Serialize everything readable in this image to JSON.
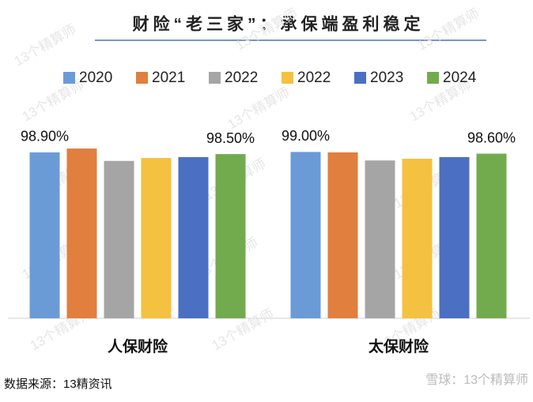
{
  "chart_data": {
    "type": "bar",
    "title": "财险“老三家”：承保端盈利稳定",
    "categories": [
      "人保财险",
      "太保财险"
    ],
    "series": [
      {
        "name": "2020",
        "color": "#6b9bd6",
        "values": [
          98.9,
          99.0
        ],
        "value_labels": [
          "98.90%",
          "99.00%"
        ]
      },
      {
        "name": "2021",
        "color": "#e07f3e",
        "values": [
          99.8,
          98.9
        ]
      },
      {
        "name": "2022",
        "color": "#a5a5a5",
        "values": [
          96.9,
          97.0
        ]
      },
      {
        "name": "2022",
        "color": "#f5c140",
        "values": [
          97.6,
          97.4
        ]
      },
      {
        "name": "2023",
        "color": "#4b6fc2",
        "values": [
          97.8,
          97.8
        ]
      },
      {
        "name": "2024",
        "color": "#72ab4e",
        "values": [
          98.5,
          98.6
        ],
        "value_labels": [
          "98.50%",
          "98.60%"
        ]
      }
    ],
    "ylim": [
      60,
      100
    ],
    "source": "数据来源：13精资讯",
    "watermark": "13个精算师",
    "footer_watermark": "雪球：13个精算师"
  }
}
